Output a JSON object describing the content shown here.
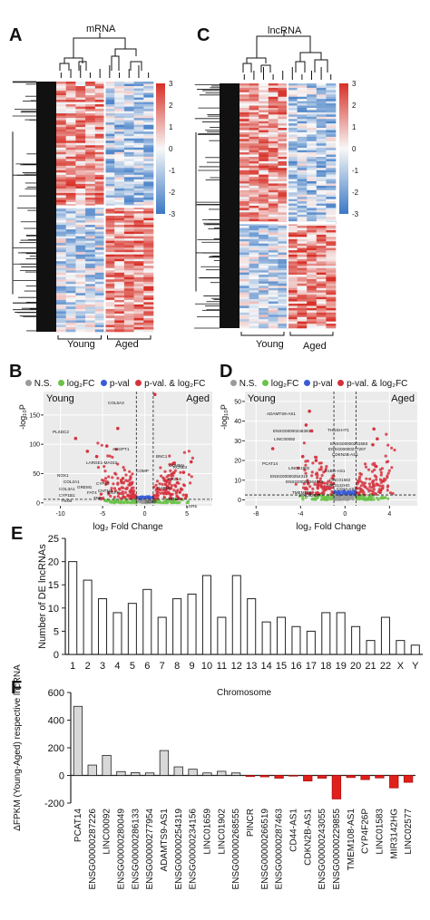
{
  "panels": {
    "A": "A",
    "B": "B",
    "C": "C",
    "D": "D",
    "E": "E",
    "F": "F"
  },
  "heatmap_a": {
    "title": "mRNA",
    "group_young": "Young",
    "group_aged": "Aged",
    "scale_ticks": [
      "3",
      "2",
      "1",
      "0",
      "-1",
      "-2",
      "-3"
    ]
  },
  "heatmap_c": {
    "title": "lncRNA",
    "group_young": "Young",
    "group_aged": "Aged",
    "scale_ticks": [
      "3",
      "2",
      "1",
      "0",
      "-1",
      "-2",
      "-3"
    ]
  },
  "legend_bd": {
    "ns": "N.S.",
    "log2fc": "log₂FC",
    "pval": "p-val",
    "both": "p-val. & log₂FC"
  },
  "colors": {
    "ns": "#9a9a9a",
    "log2fc": "#6cc24a",
    "pval": "#3b5bd6",
    "both": "#d6323e",
    "heat_high": "#d73027",
    "heat_low": "#3a78c4",
    "bar_up": "#d8d8d8",
    "bar_down": "#e0201b"
  },
  "volcano_b": {
    "ylabel": "-log₁₀P",
    "xlabel": "log₂ Fold Change",
    "young": "Young",
    "aged": "Aged",
    "x_ticks": [
      "-10",
      "-5",
      "0",
      "5"
    ],
    "y_ticks": [
      "0",
      "50",
      "100",
      "150"
    ],
    "gene_labels": [
      "COL6A3",
      "PLXDC2",
      "ANGPT1",
      "LARGE1-MAGI2",
      "BNC1",
      "COMP",
      "COMMA",
      "KCNE4",
      "CXCL6",
      "NOX1",
      "COL2A1",
      "COL3A1",
      "CYP1B1",
      "TNXB",
      "GREM1",
      "CYP19",
      "FAT4",
      "CNTN4",
      "EGFR",
      "TNF",
      "RAB15",
      "MT1F",
      "ACKR",
      "LGR5"
    ]
  },
  "volcano_d": {
    "ylabel": "-log₁₀P",
    "xlabel": "log₂ Fold Change",
    "young": "Young",
    "aged": "Aged",
    "x_ticks": [
      "-8",
      "-4",
      "0",
      "4"
    ],
    "y_ticks": [
      "0",
      "10",
      "20",
      "30",
      "40",
      "50"
    ],
    "gene_labels": [
      "ADAMTS9-AS1",
      "ENSG00000248393",
      "LINC00092",
      "THUSH-IT1",
      "ENSG00000201583",
      "ENSG00000277207",
      "CDKN2B-AS1",
      "PCAT14",
      "LINC01902",
      "ENSG00000254319",
      "ENSG00000264319",
      "LINC01583",
      "MIR3142HG",
      "CD44-AS1",
      "A1BG-AS1",
      "TMEM108",
      "LINC02577"
    ]
  },
  "chart_data": [
    {
      "type": "bar",
      "title": "",
      "xlabel": "Chromosome",
      "ylabel": "Number of DE lncRNAs",
      "categories": [
        "1",
        "2",
        "3",
        "4",
        "5",
        "6",
        "7",
        "8",
        "9",
        "10",
        "11",
        "12",
        "13",
        "14",
        "15",
        "16",
        "17",
        "18",
        "19",
        "20",
        "21",
        "22",
        "X",
        "Y"
      ],
      "values": [
        20,
        16,
        12,
        9,
        11,
        14,
        8,
        12,
        13,
        17,
        8,
        17,
        12,
        7,
        8,
        6,
        5,
        9,
        9,
        6,
        3,
        8,
        3,
        2
      ],
      "ylim": [
        0,
        25
      ],
      "y_ticks": [
        "0",
        "5",
        "10",
        "15",
        "20",
        "25"
      ],
      "grid": false
    },
    {
      "type": "bar",
      "title": "",
      "xlabel": "",
      "ylabel": "ΔFPKM (Young-Aged) respective lncRNA",
      "categories": [
        "PCAT14",
        "ENSG00000287226",
        "LINC00092",
        "ENSG00000280049",
        "ENSG00000286133",
        "ENSG00000277954",
        "ADAMTS9-AS1",
        "ENSG00000254319",
        "ENSG00000234156",
        "LINC01659",
        "LINC01902",
        "ENSG00000268555",
        "PINCR",
        "ENSG00000266519",
        "ENSG00000287463",
        "CD44-AS1",
        "CDKN2B-AS1",
        "ENSG00000243055",
        "ENSG00000229855",
        "TMEM108-AS1",
        "CYP4F26P",
        "LINC01583",
        "MIR3142HG",
        "LINC02577"
      ],
      "values": [
        500,
        75,
        145,
        28,
        20,
        18,
        180,
        62,
        45,
        18,
        30,
        18,
        -8,
        -10,
        -20,
        -5,
        -40,
        -20,
        -170,
        -15,
        -30,
        -18,
        -90,
        -50
      ],
      "ylim": [
        -200,
        600
      ],
      "y_ticks": [
        "-200",
        "0",
        "200",
        "400",
        "600"
      ],
      "grid": false
    }
  ]
}
